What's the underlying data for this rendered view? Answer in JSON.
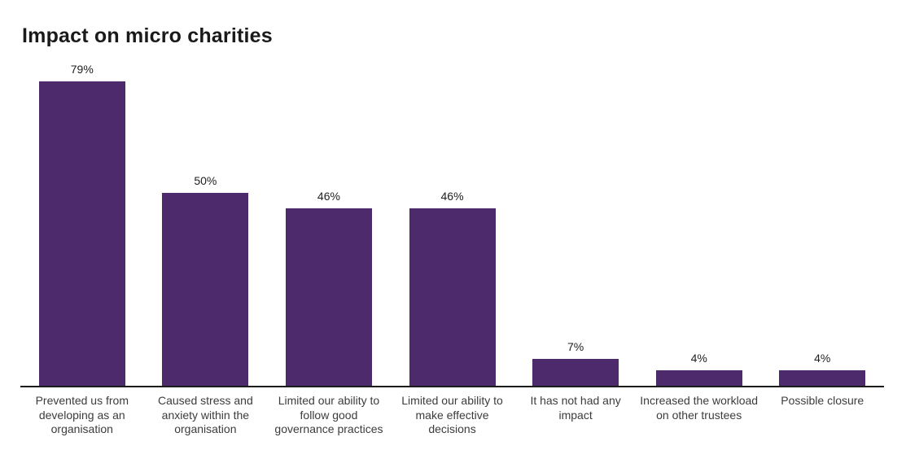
{
  "chart_data": {
    "type": "bar",
    "title": "Impact on micro charities",
    "categories": [
      "Prevented us from developing as an organisation",
      "Caused stress and anxiety within the organisation",
      "Limited our ability to follow good governance practices",
      "Limited our ability to make effective decisions",
      "It has not had any impact",
      "Increased the workload on other trustees",
      "Possible closure"
    ],
    "values": [
      79,
      50,
      46,
      46,
      7,
      4,
      4
    ],
    "value_labels": [
      "79%",
      "50%",
      "46%",
      "46%",
      "7%",
      "4%",
      "4%"
    ],
    "xlabel": "",
    "ylabel": "",
    "ylim": [
      0,
      100
    ],
    "grid": false,
    "legend": "none",
    "bar_color": "#4C2A6C",
    "axis_color": "#1C1C1C",
    "title_color": "#1A1A1A",
    "value_label_color": "#212121",
    "category_label_color": "#3C3C3C"
  }
}
